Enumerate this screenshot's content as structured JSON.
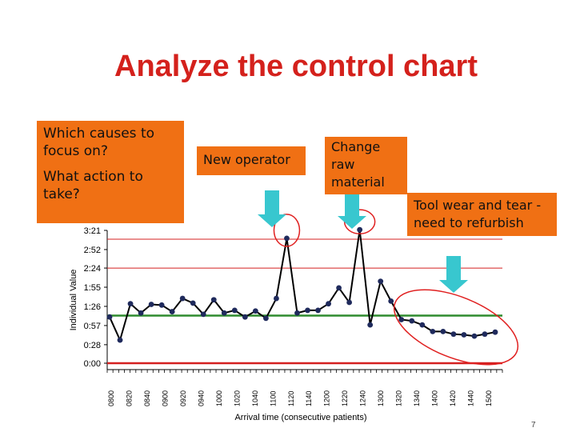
{
  "title": "Analyze the control chart",
  "callouts": {
    "focus_causes": "Which causes to focus on?",
    "focus_causes_line1": "Which causes to",
    "focus_causes_line2": "focus on?",
    "action_line1": "What action to",
    "action_line2": "take?",
    "new_operator": "New operator",
    "raw_material_line1": "Change",
    "raw_material_line2": "raw",
    "raw_material_line3": "material",
    "tool_wear_line1": "Tool wear and tear -",
    "tool_wear_line2": "need to refurbish"
  },
  "page_number": "7",
  "colors": {
    "title": "#d4211c",
    "callout_bg": "#f07014",
    "arrow": "#38c7cf",
    "data_line": "#000000",
    "marker": "#1f2a5c",
    "limit_line": "#d42020",
    "center_line": "#2e8b2e",
    "circle": "#e02020"
  },
  "chart_data": {
    "type": "line",
    "title": "",
    "xlabel": "Arrival time (consecutive patients)",
    "ylabel": "Individual Value",
    "y_tick_labels": [
      "0:00",
      "0:28",
      "0:57",
      "1:26",
      "1:55",
      "2:24",
      "2:52",
      "3:21"
    ],
    "y_ticks": [
      0,
      28,
      57,
      86,
      115,
      144,
      172,
      201
    ],
    "x_tick_labels": [
      "0800",
      "0820",
      "0840",
      "0900",
      "0920",
      "0940",
      "1000",
      "1020",
      "1040",
      "1100",
      "1120",
      "1140",
      "1200",
      "1220",
      "1240",
      "1300",
      "1320",
      "1340",
      "1400",
      "1420",
      "1440",
      "1500"
    ],
    "ylim": [
      0,
      201
    ],
    "control_limits": {
      "ucl": 144,
      "center": 72,
      "lcl": 0
    },
    "series": [
      {
        "values": [
          70,
          35,
          90,
          76,
          89,
          88,
          78,
          98,
          91,
          74,
          96,
          76,
          80,
          70,
          79,
          68,
          98,
          189,
          76,
          80,
          80,
          90,
          114,
          92,
          202,
          58,
          124,
          94,
          66,
          64,
          58,
          48,
          48,
          44,
          43,
          41,
          44,
          47
        ]
      }
    ]
  }
}
